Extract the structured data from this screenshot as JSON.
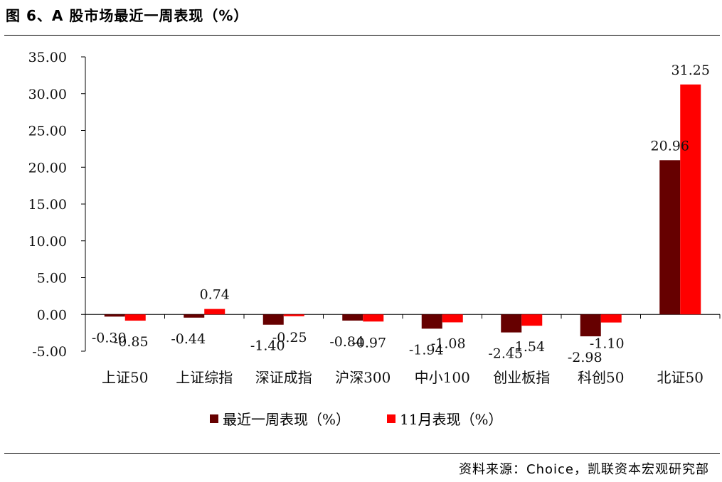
{
  "title": "图 6、A 股市场最近一周表现（%）",
  "source": "资料来源：Choice，凯联资本宏观研究部",
  "colors": {
    "weekly": "#660000",
    "monthly": "#ff0000"
  },
  "chart_data": {
    "type": "bar",
    "categories": [
      "上证50",
      "上证综指",
      "深证成指",
      "沪深300",
      "中小100",
      "创业板指",
      "科创50",
      "北证50"
    ],
    "series": [
      {
        "name": "最近一周表现（%）",
        "values": [
          -0.3,
          -0.44,
          -1.4,
          -0.84,
          -1.94,
          -2.45,
          -2.98,
          20.96
        ],
        "labels": [
          "-0.30",
          "-0.44",
          "-1.40",
          "-0.84",
          "-1.94",
          "-2.45",
          "-2.98",
          "20.96"
        ]
      },
      {
        "name": "11月表现（%）",
        "values": [
          -0.85,
          0.74,
          -0.25,
          -0.97,
          -1.08,
          -1.54,
          -1.1,
          31.25
        ],
        "labels": [
          "-0.85",
          "0.74",
          "-0.25",
          "-0.97",
          "-1.08",
          "-1.54",
          "-1.10",
          "31.25"
        ]
      }
    ],
    "ylim": [
      -5,
      35
    ],
    "yticks": [
      "-5.00",
      "0.00",
      "5.00",
      "10.00",
      "15.00",
      "20.00",
      "25.00",
      "30.00",
      "35.00"
    ],
    "grid": false,
    "legend": "bottom"
  }
}
